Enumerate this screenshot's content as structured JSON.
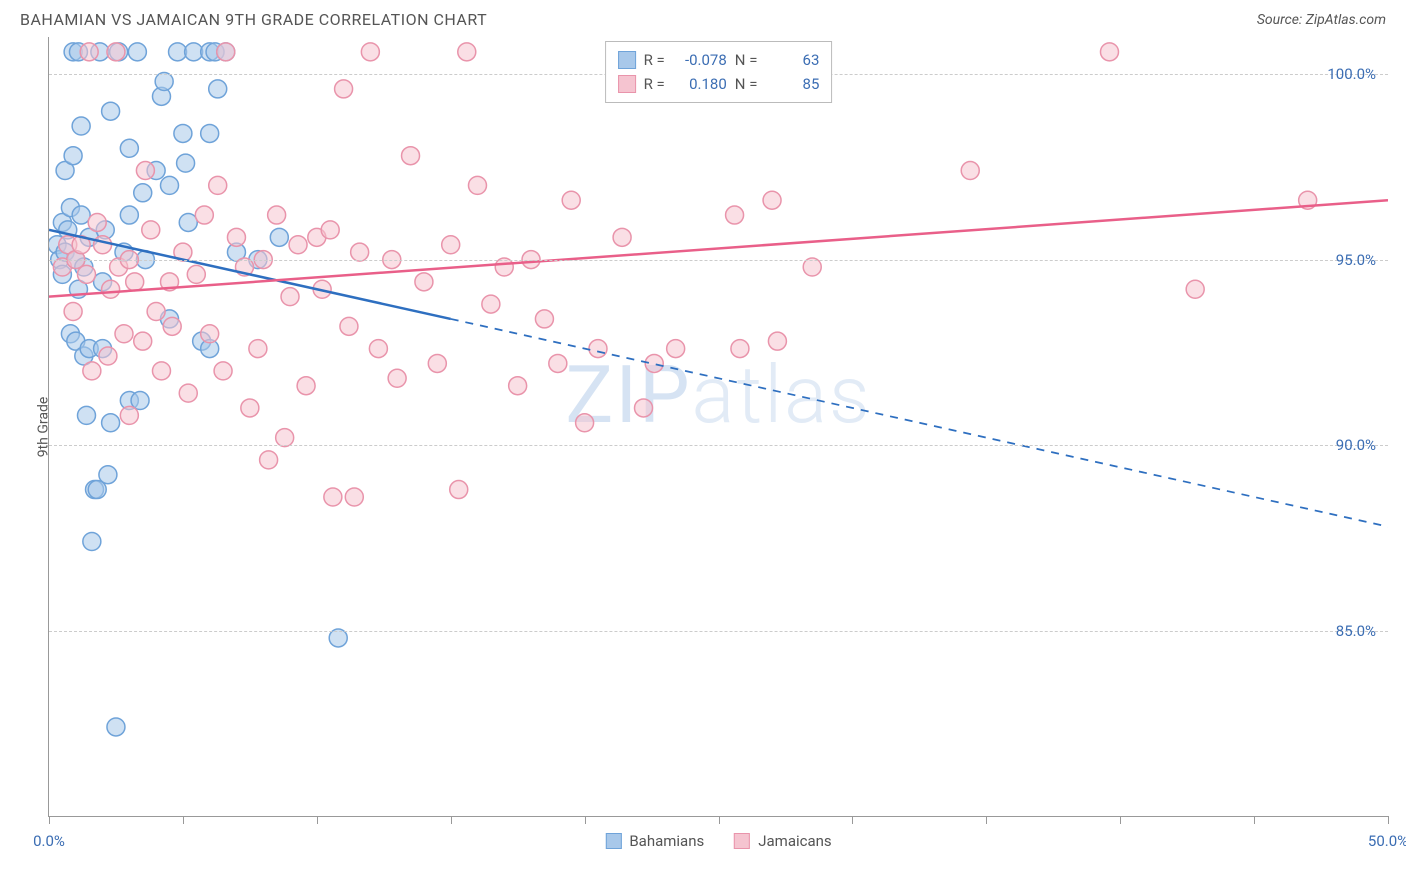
{
  "header": {
    "title": "BAHAMIAN VS JAMAICAN 9TH GRADE CORRELATION CHART",
    "source": "Source: ZipAtlas.com"
  },
  "watermark": {
    "zip": "ZIP",
    "atlas": "atlas"
  },
  "chart": {
    "type": "scatter",
    "xlim": [
      0,
      50
    ],
    "ylim": [
      80,
      101
    ],
    "xticks": [
      0,
      5,
      10,
      15,
      20,
      25,
      30,
      35,
      40,
      45,
      50
    ],
    "xtick_labels": {
      "0": "0.0%",
      "50": "50.0%"
    },
    "yticks": [
      85,
      90,
      95,
      100
    ],
    "ytick_labels": [
      "85.0%",
      "90.0%",
      "95.0%",
      "100.0%"
    ],
    "yaxis_label": "9th Grade",
    "background_color": "#ffffff",
    "grid_color": "#cccccc",
    "axis_color": "#999999",
    "tick_label_color": "#3b6db3",
    "marker_radius": 9,
    "marker_stroke_width": 1.5,
    "line_width": 2.5,
    "series": [
      {
        "name": "Bahamians",
        "color_fill": "#a8c8ea",
        "color_stroke": "#6fa3d9",
        "line_color": "#2e6fc0",
        "R": "-0.078",
        "N": "63",
        "trend": {
          "x1": 0,
          "y1": 95.8,
          "x2": 50,
          "y2": 87.8,
          "solid_until_x": 15
        },
        "points": [
          [
            0.3,
            95.4
          ],
          [
            0.4,
            95.0
          ],
          [
            0.5,
            96.0
          ],
          [
            0.5,
            94.6
          ],
          [
            0.6,
            97.4
          ],
          [
            0.6,
            95.2
          ],
          [
            0.7,
            95.8
          ],
          [
            0.8,
            93.0
          ],
          [
            0.8,
            96.4
          ],
          [
            0.9,
            100.6
          ],
          [
            0.9,
            97.8
          ],
          [
            1.0,
            95.0
          ],
          [
            1.0,
            92.8
          ],
          [
            1.1,
            100.6
          ],
          [
            1.1,
            94.2
          ],
          [
            1.2,
            98.6
          ],
          [
            1.2,
            96.2
          ],
          [
            1.3,
            92.4
          ],
          [
            1.3,
            94.8
          ],
          [
            1.4,
            90.8
          ],
          [
            1.5,
            92.6
          ],
          [
            1.5,
            95.6
          ],
          [
            1.6,
            87.4
          ],
          [
            1.7,
            88.8
          ],
          [
            1.8,
            88.8
          ],
          [
            1.9,
            100.6
          ],
          [
            2.0,
            92.6
          ],
          [
            2.0,
            94.4
          ],
          [
            2.1,
            95.8
          ],
          [
            2.2,
            89.2
          ],
          [
            2.3,
            99.0
          ],
          [
            2.3,
            90.6
          ],
          [
            2.5,
            82.4
          ],
          [
            2.6,
            100.6
          ],
          [
            2.8,
            95.2
          ],
          [
            3.0,
            98.0
          ],
          [
            3.0,
            91.2
          ],
          [
            3.0,
            96.2
          ],
          [
            3.3,
            100.6
          ],
          [
            3.4,
            91.2
          ],
          [
            3.5,
            96.8
          ],
          [
            3.6,
            95.0
          ],
          [
            4.0,
            97.4
          ],
          [
            4.2,
            99.4
          ],
          [
            4.3,
            99.8
          ],
          [
            4.5,
            93.4
          ],
          [
            4.5,
            97.0
          ],
          [
            4.8,
            100.6
          ],
          [
            5.0,
            98.4
          ],
          [
            5.1,
            97.6
          ],
          [
            5.2,
            96.0
          ],
          [
            5.4,
            100.6
          ],
          [
            5.7,
            92.8
          ],
          [
            6.0,
            100.6
          ],
          [
            6.0,
            98.4
          ],
          [
            6.0,
            92.6
          ],
          [
            6.2,
            100.6
          ],
          [
            6.3,
            99.6
          ],
          [
            6.6,
            100.6
          ],
          [
            7.0,
            95.2
          ],
          [
            7.8,
            95.0
          ],
          [
            8.6,
            95.6
          ],
          [
            10.8,
            84.8
          ]
        ]
      },
      {
        "name": "Jamaicans",
        "color_fill": "#f5c4d0",
        "color_stroke": "#e994ab",
        "line_color": "#e95f89",
        "R": "0.180",
        "N": "85",
        "trend": {
          "x1": 0,
          "y1": 94.0,
          "x2": 50,
          "y2": 96.6,
          "solid_until_x": 50
        },
        "points": [
          [
            0.5,
            94.8
          ],
          [
            0.7,
            95.4
          ],
          [
            0.9,
            93.6
          ],
          [
            1.0,
            95.0
          ],
          [
            1.2,
            95.4
          ],
          [
            1.4,
            94.6
          ],
          [
            1.5,
            100.6
          ],
          [
            1.6,
            92.0
          ],
          [
            1.8,
            96.0
          ],
          [
            2.0,
            95.4
          ],
          [
            2.2,
            92.4
          ],
          [
            2.3,
            94.2
          ],
          [
            2.5,
            100.6
          ],
          [
            2.6,
            94.8
          ],
          [
            2.8,
            93.0
          ],
          [
            3.0,
            95.0
          ],
          [
            3.0,
            90.8
          ],
          [
            3.2,
            94.4
          ],
          [
            3.5,
            92.8
          ],
          [
            3.6,
            97.4
          ],
          [
            3.8,
            95.8
          ],
          [
            4.0,
            93.6
          ],
          [
            4.2,
            92.0
          ],
          [
            4.5,
            94.4
          ],
          [
            4.6,
            93.2
          ],
          [
            5.0,
            95.2
          ],
          [
            5.2,
            91.4
          ],
          [
            5.5,
            94.6
          ],
          [
            5.8,
            96.2
          ],
          [
            6.0,
            93.0
          ],
          [
            6.3,
            97.0
          ],
          [
            6.5,
            92.0
          ],
          [
            6.6,
            100.6
          ],
          [
            7.0,
            95.6
          ],
          [
            7.3,
            94.8
          ],
          [
            7.5,
            91.0
          ],
          [
            7.8,
            92.6
          ],
          [
            8.0,
            95.0
          ],
          [
            8.2,
            89.6
          ],
          [
            8.5,
            96.2
          ],
          [
            8.8,
            90.2
          ],
          [
            9.0,
            94.0
          ],
          [
            9.3,
            95.4
          ],
          [
            9.6,
            91.6
          ],
          [
            10.0,
            95.6
          ],
          [
            10.2,
            94.2
          ],
          [
            10.5,
            95.8
          ],
          [
            10.6,
            88.6
          ],
          [
            11.0,
            99.6
          ],
          [
            11.2,
            93.2
          ],
          [
            11.4,
            88.6
          ],
          [
            11.6,
            95.2
          ],
          [
            12.0,
            100.6
          ],
          [
            12.3,
            92.6
          ],
          [
            12.8,
            95.0
          ],
          [
            13.0,
            91.8
          ],
          [
            13.5,
            97.8
          ],
          [
            14.0,
            94.4
          ],
          [
            14.5,
            92.2
          ],
          [
            15.0,
            95.4
          ],
          [
            15.3,
            88.8
          ],
          [
            15.6,
            100.6
          ],
          [
            16.0,
            97.0
          ],
          [
            16.5,
            93.8
          ],
          [
            17.0,
            94.8
          ],
          [
            17.5,
            91.6
          ],
          [
            18.0,
            95.0
          ],
          [
            18.5,
            93.4
          ],
          [
            19.0,
            92.2
          ],
          [
            19.5,
            96.6
          ],
          [
            20.0,
            90.6
          ],
          [
            20.5,
            92.6
          ],
          [
            21.4,
            95.6
          ],
          [
            22.2,
            91.0
          ],
          [
            22.6,
            92.2
          ],
          [
            23.4,
            92.6
          ],
          [
            25.6,
            96.2
          ],
          [
            25.8,
            92.6
          ],
          [
            27.0,
            96.6
          ],
          [
            27.2,
            92.8
          ],
          [
            28.5,
            94.8
          ],
          [
            34.4,
            97.4
          ],
          [
            39.6,
            100.6
          ],
          [
            42.8,
            94.2
          ],
          [
            47.0,
            96.6
          ]
        ]
      }
    ]
  },
  "legend_top": {
    "rows": [
      {
        "swatch_fill": "#a8c8ea",
        "swatch_stroke": "#6fa3d9",
        "r_label": "R =",
        "r_value": "-0.078",
        "n_label": "N =",
        "n_value": "63"
      },
      {
        "swatch_fill": "#f5c4d0",
        "swatch_stroke": "#e994ab",
        "r_label": "R =",
        "r_value": "0.180",
        "n_label": "N =",
        "n_value": "85"
      }
    ]
  },
  "legend_bottom": {
    "items": [
      {
        "label": "Bahamians",
        "swatch_fill": "#a8c8ea",
        "swatch_stroke": "#6fa3d9"
      },
      {
        "label": "Jamaicans",
        "swatch_fill": "#f5c4d0",
        "swatch_stroke": "#e994ab"
      }
    ]
  }
}
